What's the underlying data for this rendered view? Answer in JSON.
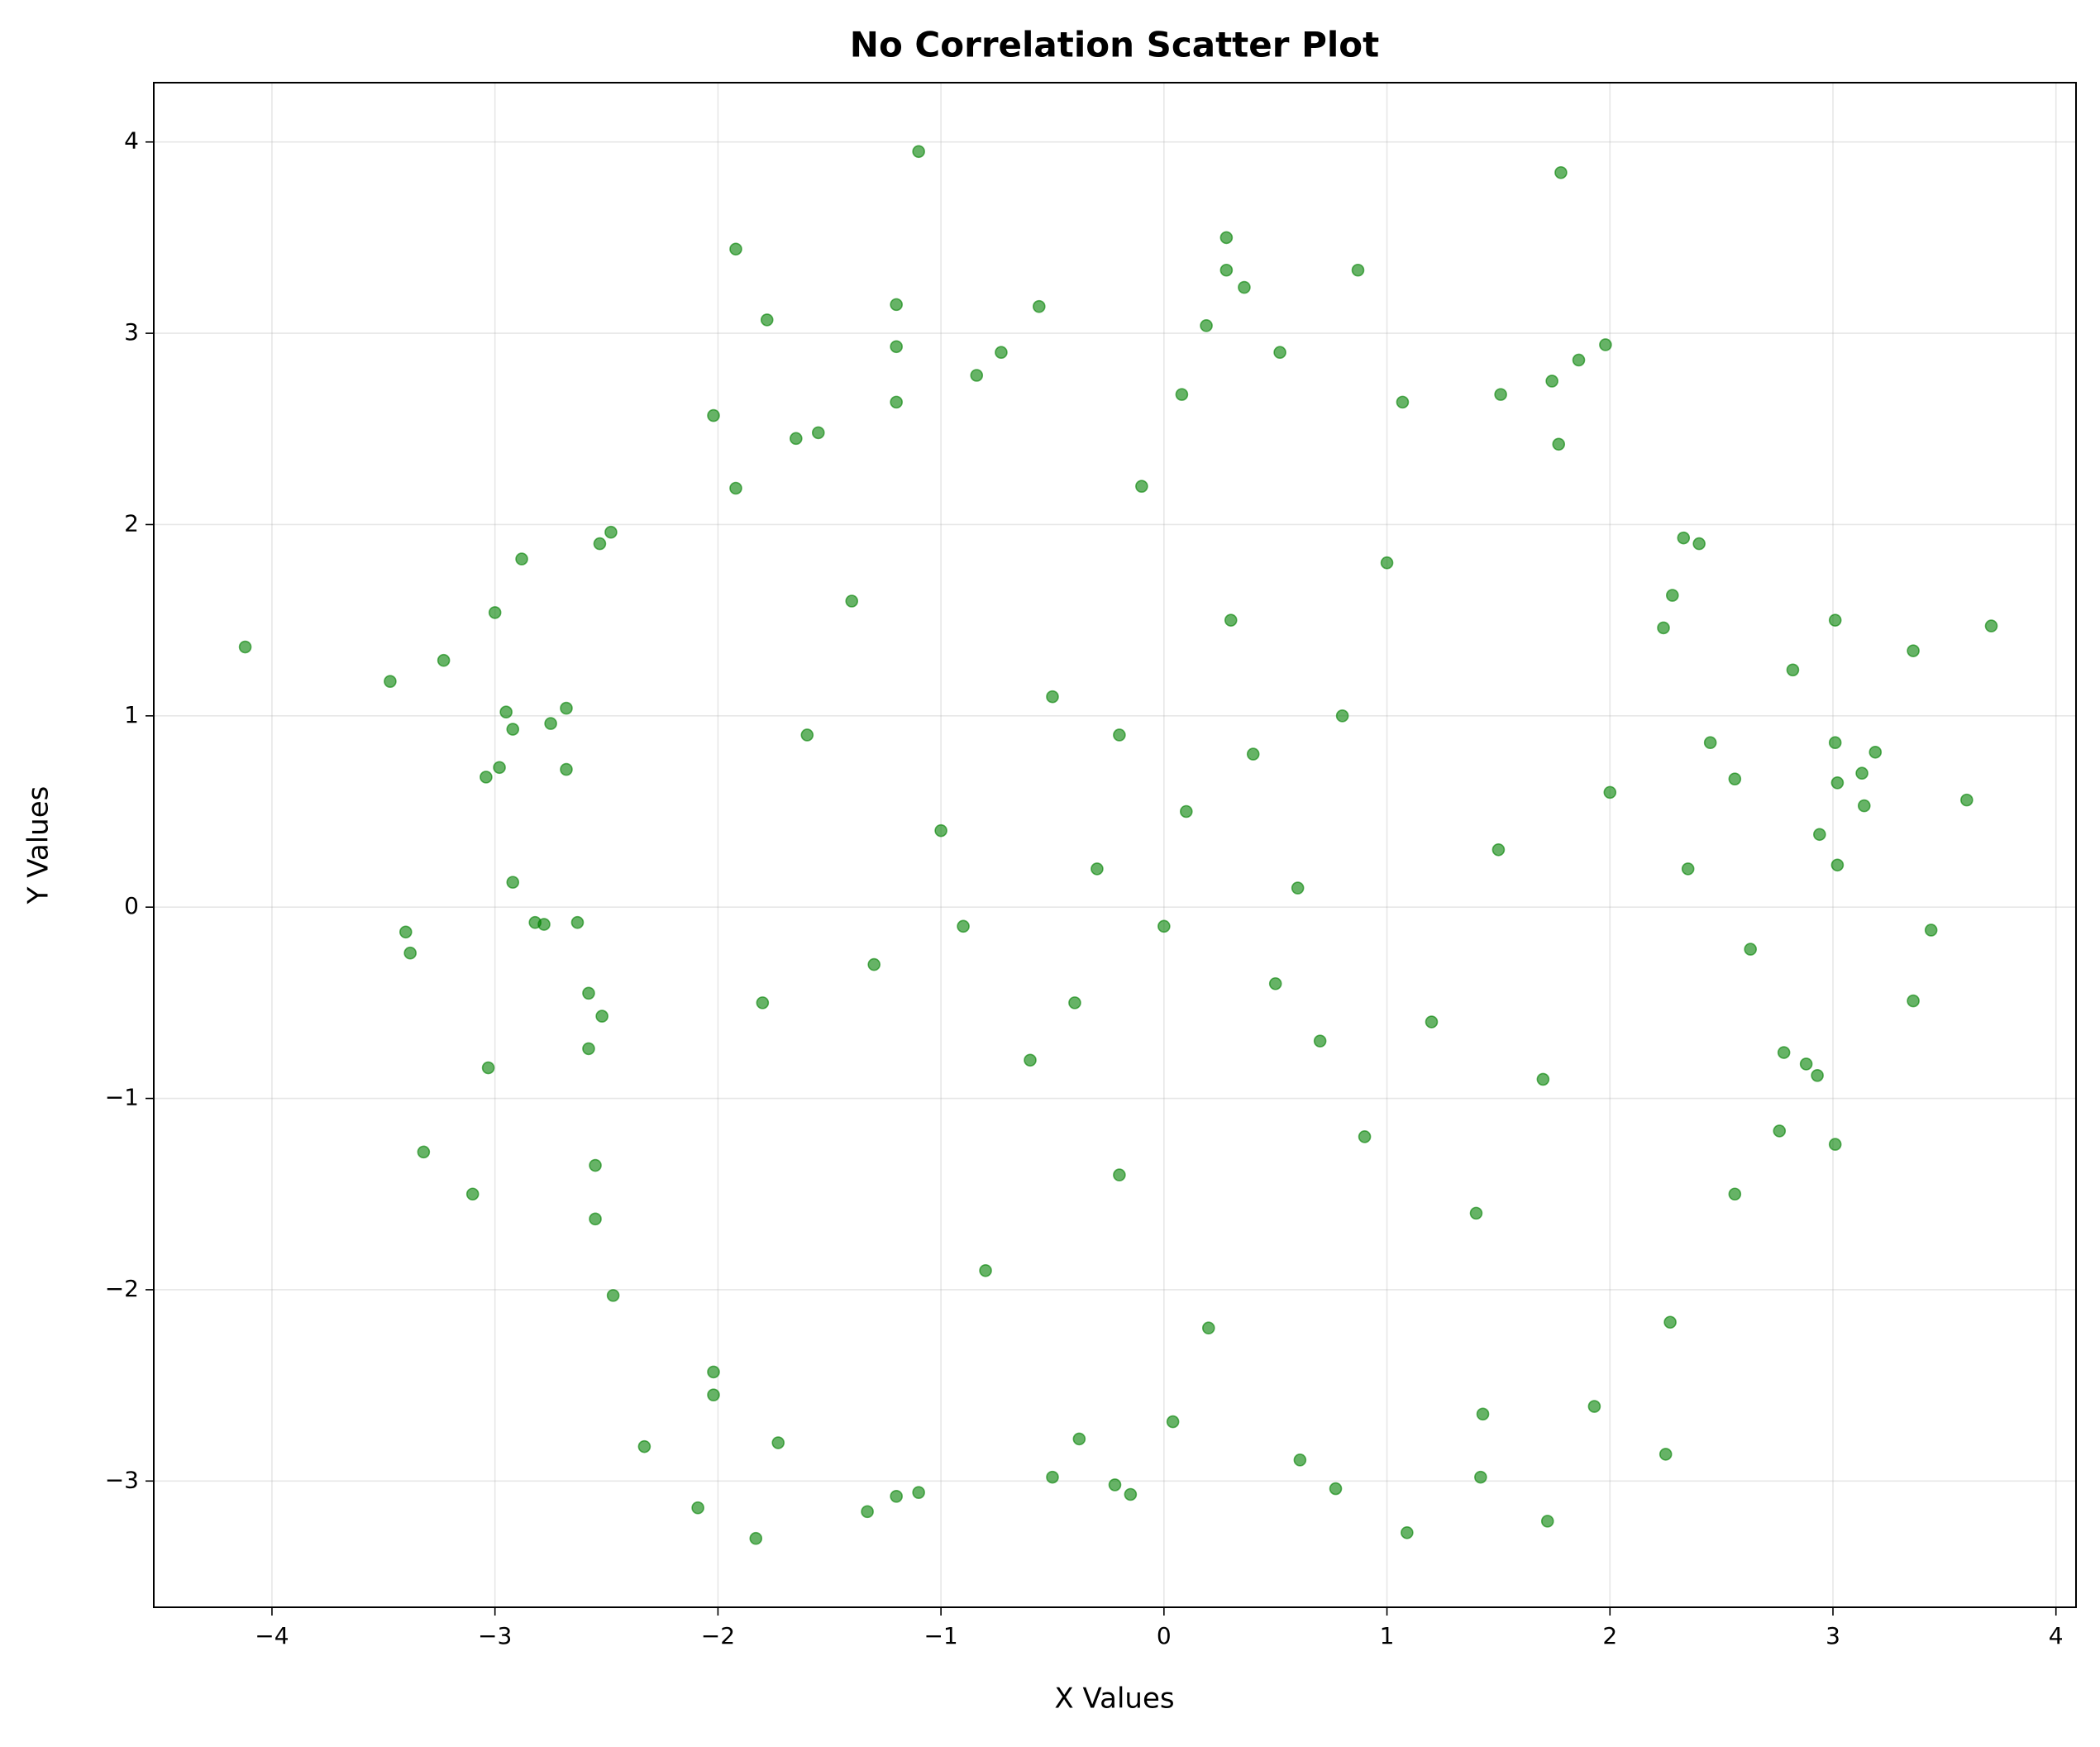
{
  "chart_data": {
    "type": "scatter",
    "title": "No Correlation Scatter Plot",
    "x_label": "X Values",
    "y_label": "Y Values",
    "color": "green",
    "grid": true,
    "xlim": [
      -4.53,
      4.09
    ],
    "ylim": [
      -3.66,
      4.31
    ],
    "xticks": [
      {
        "value": -4,
        "label": "−4"
      },
      {
        "value": -3,
        "label": "−3"
      },
      {
        "value": -2,
        "label": "−2"
      },
      {
        "value": -1,
        "label": "−1"
      },
      0,
      1,
      2,
      3,
      4
    ],
    "yticks": [
      {
        "value": -3,
        "label": "−3"
      },
      {
        "value": -2,
        "label": "−2"
      },
      {
        "value": -1,
        "label": "−1"
      },
      0,
      1,
      2,
      3,
      4
    ],
    "x": [
      -4.12,
      -3.47,
      -3.23,
      -3.0,
      -2.88,
      -2.95,
      -3.04,
      -2.98,
      -2.92,
      -2.75,
      -2.68,
      -2.68,
      -2.92,
      -2.82,
      -2.78,
      -2.63,
      -3.4,
      -3.38,
      -3.03,
      -3.32,
      -3.1,
      -2.58,
      -2.58,
      -2.52,
      -2.55,
      -2.55,
      -2.47,
      -2.33,
      -2.09,
      -1.83,
      -1.73,
      -2.02,
      -2.02,
      -1.1,
      -1.92,
      -1.78,
      -1.2,
      -1.2,
      -1.2,
      -2.02,
      -1.92,
      -1.65,
      -1.55,
      -2.48,
      -2.53,
      1.78,
      0.28,
      0.28,
      0.36,
      0.87,
      0.19,
      -0.56,
      1.98,
      0.52,
      1.86,
      1.74,
      -0.84,
      -0.73,
      1.51,
      0.08,
      1.07,
      1.77,
      3.71,
      3.36,
      3.01,
      2.82,
      3.6,
      3.19,
      3.01,
      3.13,
      3.14,
      3.02,
      2.94,
      3.02,
      3.44,
      3.36,
      2.63,
      2.78,
      2.88,
      2.93,
      2.76,
      3.01,
      2.56,
      2.27,
      2.25,
      1.72,
      1.09,
      1.42,
      0.77,
      -0.15,
      -0.22,
      -0.5,
      -1.1,
      -1.2,
      -1.33,
      -0.38,
      0.04,
      0.61,
      1.43,
      1.93,
      2.56,
      2.45,
      2.35,
      2.4,
      2.33,
      2.24,
      2.28,
      0.1,
      -0.3,
      0.5,
      -0.6,
      0.8,
      -1.0,
      1.2,
      0.3,
      -0.2,
      -1.3,
      1.5,
      0.0,
      -0.5,
      0.9,
      -1.6,
      1.7,
      0.6,
      -0.8,
      0.2,
      -0.1,
      1.0,
      -1.4,
      1.4,
      -1.8,
      2.0,
      -0.9,
      0.4,
      -0.4,
      0.7,
      -0.2
    ],
    "y": [
      1.36,
      1.18,
      1.29,
      1.54,
      1.82,
      1.02,
      0.68,
      0.73,
      0.93,
      0.96,
      1.04,
      0.72,
      0.13,
      -0.08,
      -0.09,
      -0.08,
      -0.13,
      -0.24,
      -0.84,
      -1.28,
      -1.5,
      -0.45,
      -0.74,
      -0.57,
      -1.35,
      -1.63,
      -2.03,
      -2.82,
      -3.14,
      -3.3,
      -2.8,
      -2.43,
      -2.55,
      3.95,
      3.44,
      3.07,
      3.15,
      2.93,
      2.64,
      2.57,
      2.19,
      2.45,
      2.48,
      1.96,
      1.9,
      3.84,
      3.5,
      3.33,
      3.24,
      3.33,
      3.04,
      3.14,
      2.94,
      2.9,
      2.86,
      2.75,
      2.78,
      2.9,
      2.68,
      2.68,
      2.64,
      2.42,
      1.47,
      1.34,
      1.5,
      1.24,
      0.56,
      0.81,
      0.86,
      0.7,
      0.53,
      0.65,
      0.38,
      0.22,
      -0.12,
      -0.49,
      -0.22,
      -0.76,
      -0.82,
      -0.88,
      -1.17,
      -1.24,
      -1.5,
      -2.17,
      -2.86,
      -3.21,
      -3.27,
      -2.98,
      -3.04,
      -3.07,
      -3.02,
      -2.98,
      -3.06,
      -3.08,
      -3.16,
      -2.78,
      -2.69,
      -2.89,
      -2.65,
      -2.61,
      0.67,
      0.86,
      0.2,
      1.9,
      1.93,
      1.46,
      1.63,
      0.5,
      0.2,
      -0.4,
      -0.8,
      1.0,
      0.4,
      -0.6,
      1.5,
      -1.4,
      -0.3,
      0.3,
      -0.1,
      1.1,
      -1.2,
      0.9,
      -0.9,
      0.1,
      -1.9,
      -2.2,
      2.2,
      1.8,
      1.6,
      -1.6,
      -0.5,
      0.6,
      -0.1,
      0.8,
      -0.5,
      -0.7,
      0.9
    ]
  }
}
